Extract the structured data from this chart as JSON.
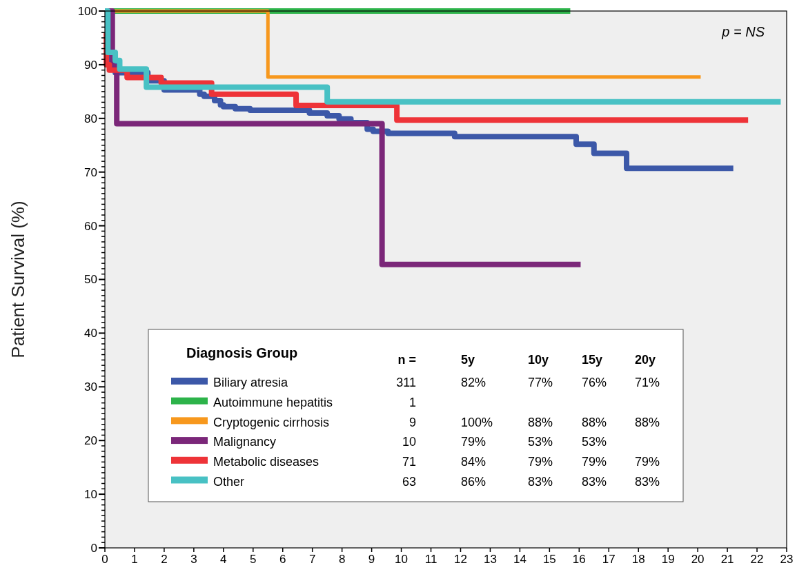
{
  "chart_data": {
    "type": "step",
    "ylabel": "Patient Survival (%)",
    "legend_title": "Diagnosis Group",
    "legend": "bottom left",
    "xlim": [
      0,
      23
    ],
    "xticks": [
      0,
      1,
      2,
      3,
      4,
      5,
      6,
      7,
      8,
      9,
      10,
      11,
      12,
      13,
      14,
      15,
      16,
      17,
      18,
      19,
      20,
      21,
      22,
      23
    ],
    "ylim": [
      0,
      100
    ],
    "yticks": [
      0,
      {
        "value": 1,
        "label": null
      },
      {
        "value": 2,
        "label": null
      },
      {
        "value": 3,
        "label": null
      },
      {
        "value": 4,
        "label": null
      },
      {
        "value": 5,
        "label": null
      },
      {
        "value": 6,
        "label": null
      },
      {
        "value": 7,
        "label": null
      },
      {
        "value": 8,
        "label": null
      },
      {
        "value": 9,
        "label": null
      },
      10,
      {
        "value": 11,
        "label": null
      },
      {
        "value": 12,
        "label": null
      },
      {
        "value": 13,
        "label": null
      },
      {
        "value": 14,
        "label": null
      },
      {
        "value": 15,
        "label": null
      },
      {
        "value": 16,
        "label": null
      },
      {
        "value": 17,
        "label": null
      },
      {
        "value": 18,
        "label": null
      },
      {
        "value": 19,
        "label": null
      },
      20,
      {
        "value": 21,
        "label": null
      },
      {
        "value": 22,
        "label": null
      },
      {
        "value": 23,
        "label": null
      },
      {
        "value": 24,
        "label": null
      },
      {
        "value": 25,
        "label": null
      },
      {
        "value": 26,
        "label": null
      },
      {
        "value": 27,
        "label": null
      },
      {
        "value": 28,
        "label": null
      },
      {
        "value": 29,
        "label": null
      },
      30,
      {
        "value": 31,
        "label": null
      },
      {
        "value": 32,
        "label": null
      },
      {
        "value": 33,
        "label": null
      },
      {
        "value": 34,
        "label": null
      },
      {
        "value": 35,
        "label": null
      },
      {
        "value": 36,
        "label": null
      },
      {
        "value": 37,
        "label": null
      },
      {
        "value": 38,
        "label": null
      },
      {
        "value": 39,
        "label": null
      },
      40,
      {
        "value": 41,
        "label": null
      },
      {
        "value": 42,
        "label": null
      },
      {
        "value": 43,
        "label": null
      },
      {
        "value": 44,
        "label": null
      },
      {
        "value": 45,
        "label": null
      },
      {
        "value": 46,
        "label": null
      },
      {
        "value": 47,
        "label": null
      },
      {
        "value": 48,
        "label": null
      },
      {
        "value": 49,
        "label": null
      },
      50,
      {
        "value": 51,
        "label": null
      },
      {
        "value": 52,
        "label": null
      },
      {
        "value": 53,
        "label": null
      },
      {
        "value": 54,
        "label": null
      },
      {
        "value": 55,
        "label": null
      },
      {
        "value": 56,
        "label": null
      },
      {
        "value": 57,
        "label": null
      },
      {
        "value": 58,
        "label": null
      },
      {
        "value": 59,
        "label": null
      },
      60,
      {
        "value": 61,
        "label": null
      },
      {
        "value": 62,
        "label": null
      },
      {
        "value": 63,
        "label": null
      },
      {
        "value": 64,
        "label": null
      },
      {
        "value": 65,
        "label": null
      },
      {
        "value": 66,
        "label": null
      },
      {
        "value": 67,
        "label": null
      },
      {
        "value": 68,
        "label": null
      },
      {
        "value": 69,
        "label": null
      },
      70,
      {
        "value": 71,
        "label": null
      },
      {
        "value": 72,
        "label": null
      },
      {
        "value": 73,
        "label": null
      },
      {
        "value": 74,
        "label": null
      },
      {
        "value": 75,
        "label": null
      },
      {
        "value": 76,
        "label": null
      },
      {
        "value": 77,
        "label": null
      },
      {
        "value": 78,
        "label": null
      },
      {
        "value": 79,
        "label": null
      },
      80,
      {
        "value": 81,
        "label": null
      },
      {
        "value": 82,
        "label": null
      },
      {
        "value": 83,
        "label": null
      },
      {
        "value": 84,
        "label": null
      },
      {
        "value": 85,
        "label": null
      },
      {
        "value": 86,
        "label": null
      },
      {
        "value": 87,
        "label": null
      },
      {
        "value": 88,
        "label": null
      },
      {
        "value": 89,
        "label": null
      },
      90,
      {
        "value": 91,
        "label": null
      },
      {
        "value": 92,
        "label": null
      },
      {
        "value": 93,
        "label": null
      },
      {
        "value": 94,
        "label": null
      },
      {
        "value": 95,
        "label": null
      },
      {
        "value": 96,
        "label": null
      },
      {
        "value": 97,
        "label": null
      },
      {
        "value": 98,
        "label": null
      },
      {
        "value": 99,
        "label": null
      },
      100
    ],
    "annotations": [
      "p = NS",
      "n =",
      "5y",
      "10y",
      "15y",
      "20y",
      "311",
      "82%",
      "77%",
      "76%",
      "71%",
      "1",
      null,
      null,
      null,
      null,
      "9",
      "100%",
      "88%",
      "88%",
      "88%",
      "10",
      "79%",
      "53%",
      "53%",
      null,
      "71",
      "84%",
      "79%",
      "79%",
      "79%",
      "63",
      "86%",
      "83%",
      "83%",
      "83%"
    ],
    "series": [
      {
        "name": "Biliary atresia",
        "color": "#3c58a8",
        "x": [
          0,
          0.1,
          0.2,
          0.35,
          1.45,
          2.0,
          3.2,
          3.35,
          3.7,
          3.9,
          4.0,
          4.4,
          4.9,
          6.9,
          7.5,
          7.9,
          8.3,
          8.85,
          9.05,
          9.55,
          11.8,
          15.9,
          16.5,
          17.6,
          21.2
        ],
        "values": [
          100,
          94,
          90,
          88.5,
          87,
          85.3,
          84.5,
          84.1,
          83.3,
          82.5,
          82.2,
          81.8,
          81.5,
          81,
          80.5,
          79.9,
          79.2,
          78,
          77.6,
          77.2,
          76.6,
          75.2,
          73.5,
          70.7,
          70.7
        ]
      },
      {
        "name": "Autoimmune hepatitis",
        "color": "#2db34a",
        "x": [
          0,
          15.7
        ],
        "values": [
          100,
          100
        ]
      },
      {
        "name": "Cryptogenic cirrhosis",
        "color": "#f7981d",
        "x": [
          0,
          5.5,
          20.1
        ],
        "values": [
          100,
          87.7,
          87.7
        ]
      },
      {
        "name": "Malignancy",
        "color": "#7b2779",
        "x": [
          0,
          0.25,
          0.4,
          9.35,
          16.05
        ],
        "values": [
          100,
          89.6,
          79,
          52.8,
          52.8
        ]
      },
      {
        "name": "Metabolic diseases",
        "color": "#ee3338",
        "x": [
          0,
          0.05,
          0.15,
          0.75,
          1.9,
          3.6,
          6.45,
          9.85,
          21.7
        ],
        "values": [
          96,
          90,
          89,
          87.6,
          86.6,
          84.5,
          82.4,
          79.7,
          79.7
        ]
      },
      {
        "name": "Other",
        "color": "#48c1c4",
        "x": [
          0,
          0.1,
          0.35,
          0.5,
          1.4,
          7.5,
          22.8
        ],
        "values": [
          100,
          92.3,
          90.8,
          89.2,
          85.8,
          83.1,
          83.1
        ]
      }
    ]
  }
}
